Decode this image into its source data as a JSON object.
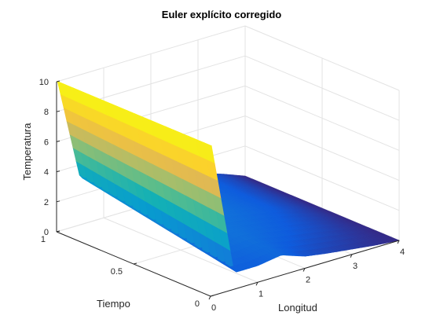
{
  "chart_data": {
    "type": "surface",
    "title": "Euler explícito corregido",
    "xlabel": "Tiempo",
    "ylabel": "Longitud",
    "zlabel": "Temperatura",
    "x_ticks": [
      "0",
      "0.5",
      "1"
    ],
    "y_ticks": [
      "0",
      "1",
      "2",
      "3",
      "4"
    ],
    "z_ticks": [
      "0",
      "2",
      "4",
      "6",
      "8",
      "10"
    ],
    "xlim": [
      0,
      1
    ],
    "ylim": [
      0,
      4
    ],
    "zlim": [
      0,
      10
    ],
    "grid": true,
    "colormap": "parula",
    "surface": {
      "tiempo": [
        0,
        0.25,
        0.5,
        0.75,
        1
      ],
      "longitud": [
        0,
        0.02,
        0.5,
        1,
        1.5,
        2,
        2.5,
        3,
        3.5,
        4
      ],
      "temperatura": [
        [
          10,
          10,
          1.1,
          1.1,
          1.35,
          0.8,
          0.55,
          0.35,
          0.15,
          0
        ],
        [
          10,
          10,
          1.6,
          1.5,
          1.6,
          1.3,
          1.0,
          0.7,
          0.35,
          0
        ],
        [
          10,
          10,
          2.1,
          1.9,
          1.75,
          1.6,
          1.3,
          0.95,
          0.5,
          0
        ],
        [
          10,
          10,
          2.6,
          2.3,
          2.0,
          1.7,
          1.35,
          1.0,
          0.55,
          0
        ],
        [
          10,
          10,
          3.1,
          2.7,
          2.3,
          1.95,
          1.55,
          1.1,
          0.6,
          0
        ]
      ]
    }
  }
}
